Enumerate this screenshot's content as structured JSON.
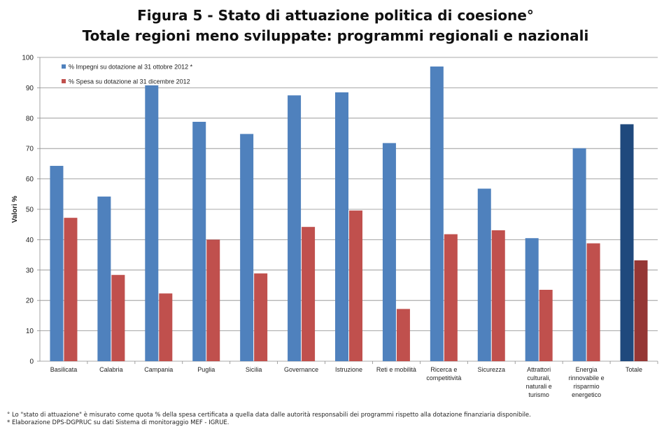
{
  "title_line1": "Figura 5 - Stato di attuazione politica di coesione°",
  "title_line2": "Totale regioni meno sviluppate: programmi regionali e nazionali",
  "chart_data": {
    "type": "bar",
    "ylabel": "Valori %",
    "xlabel": "",
    "ylim": [
      0,
      100
    ],
    "yticks": [
      0,
      10,
      20,
      30,
      40,
      50,
      60,
      70,
      80,
      90,
      100
    ],
    "grid": true,
    "legend_position": "top-left",
    "categories": [
      [
        "Basilicata"
      ],
      [
        "Calabria"
      ],
      [
        "Campania"
      ],
      [
        "Puglia"
      ],
      [
        "Sicilia"
      ],
      [
        "Governance"
      ],
      [
        "Istruzione"
      ],
      [
        "Reti e mobilità"
      ],
      [
        "Ricerca e",
        "competitività"
      ],
      [
        "Sicurezza"
      ],
      [
        "Attrattori",
        "culturali,",
        "naturali e",
        "turismo"
      ],
      [
        "Energia",
        "rinnovabile e",
        "risparmio",
        "energetico"
      ],
      [
        "Totale"
      ]
    ],
    "series": [
      {
        "name": "% Impegni su dotazione al 31 ottobre 2012 *",
        "color": "#4F81BD",
        "highlight_color": "#1F497D",
        "values": [
          64.3,
          54.2,
          90.8,
          78.8,
          74.8,
          87.5,
          88.5,
          71.8,
          97.0,
          56.8,
          40.5,
          70.1,
          78.0
        ]
      },
      {
        "name": "% Spesa su dotazione al 31 dicembre 2012",
        "color": "#C0504D",
        "highlight_color": "#953735",
        "values": [
          47.2,
          28.4,
          22.3,
          40.0,
          28.9,
          44.2,
          49.6,
          17.2,
          41.8,
          43.1,
          23.5,
          38.8,
          33.2
        ]
      }
    ]
  },
  "footnote1": "° Lo \"stato di attuazione\" è misurato come quota % della spesa certificata a quella data dalle autorità responsabili dei  programmi rispetto alla dotazione finanziaria disponibile.",
  "footnote2": "* Elaborazione DPS-DGPRUC su dati Sistema di monitoraggio MEF - IGRUE."
}
